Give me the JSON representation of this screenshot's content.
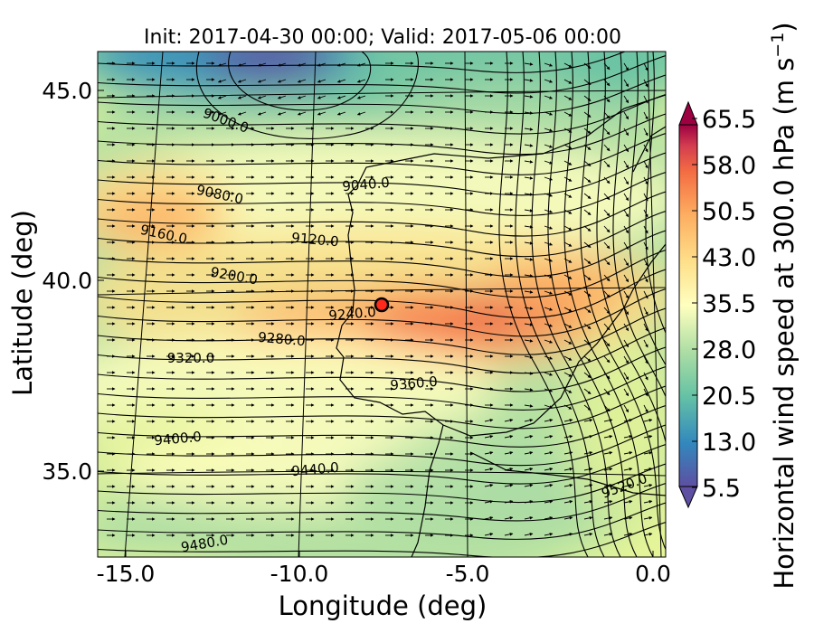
{
  "title": "Init: 2017-04-30 00:00; Valid: 2017-05-06 00:00",
  "xlabel": "Longitude (deg)",
  "ylabel": "Latitude (deg)",
  "colorbar_label": "Horizontal wind speed at 300.0 hPa (m s$^{-1}$)",
  "colorbar_label_main": "Horizontal wind speed at 300.0 hPa (m s",
  "colorbar_label_sup": "−1",
  "colorbar_label_end": ")",
  "xticks": [
    "-15.0",
    "-10.0",
    "-5.0",
    "0.0"
  ],
  "yticks": [
    "45.0",
    "40.0",
    "35.0"
  ],
  "cbar_ticks": [
    "65.5",
    "58.0",
    "50.5",
    "43.0",
    "35.5",
    "28.0",
    "20.5",
    "13.0",
    "5.5"
  ],
  "contour_labels": [
    "9000.0",
    "9040.0",
    "9080.0",
    "9120.0",
    "9160.0",
    "9200.0",
    "9240.0",
    "9280.0",
    "9320.0",
    "9360.0",
    "9400.0",
    "9440.0",
    "9480.0",
    "9520.0"
  ],
  "chart_data": {
    "type": "heatmap",
    "title": "Init: 2017-04-30 00:00; Valid: 2017-05-06 00:00",
    "xlabel": "Longitude (deg)",
    "ylabel": "Latitude (deg)",
    "xlim": [
      -16,
      0.3
    ],
    "ylim": [
      32.8,
      46.0
    ],
    "variable": "Horizontal wind speed at 300.0 hPa",
    "units": "m s^-1",
    "colorbar_range": [
      5.5,
      65.5
    ],
    "colorbar_ticks": [
      5.5,
      13.0,
      20.5,
      28.0,
      35.5,
      43.0,
      50.5,
      58.0,
      65.5
    ],
    "colormap": [
      "#5e4fa2",
      "#3288bd",
      "#66c2a5",
      "#abdda4",
      "#e6f598",
      "#ffffbf",
      "#fee08b",
      "#fdae61",
      "#f46d43",
      "#d53e4f",
      "#9e0142"
    ],
    "geopotential_height_contours": [
      9000,
      9040,
      9080,
      9120,
      9160,
      9200,
      9240,
      9280,
      9320,
      9360,
      9400,
      9440,
      9480,
      9520
    ],
    "marker": {
      "lon": -7.6,
      "lat": 39.3,
      "color": "#ff0000"
    }
  }
}
